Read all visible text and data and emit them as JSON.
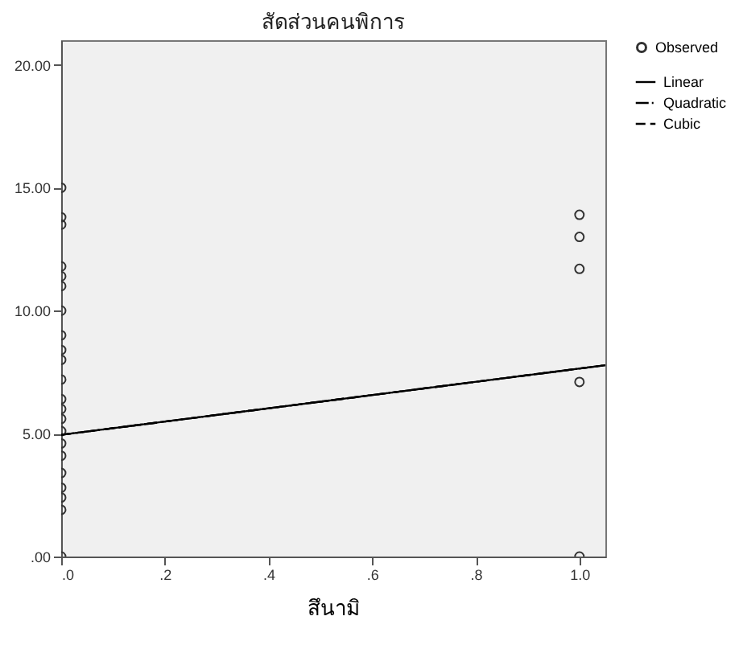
{
  "chart_data": {
    "type": "scatter",
    "title": "สัดส่วนคนพิการ",
    "xlabel": "สึนามิ",
    "xlim": [
      0,
      1.05
    ],
    "ylim": [
      0,
      21
    ],
    "xticks": [
      {
        "value": 0,
        "label": ".0"
      },
      {
        "value": 0.2,
        "label": ".2"
      },
      {
        "value": 0.4,
        "label": ".4"
      },
      {
        "value": 0.6,
        "label": ".6"
      },
      {
        "value": 0.8,
        "label": ".8"
      },
      {
        "value": 1,
        "label": "1.0"
      }
    ],
    "yticks": [
      {
        "value": 0,
        "label": ".00"
      },
      {
        "value": 5,
        "label": "5.00"
      },
      {
        "value": 10,
        "label": "10.00"
      },
      {
        "value": 15,
        "label": "15.00"
      },
      {
        "value": 20,
        "label": "20.00"
      }
    ],
    "grid": false,
    "legend": "top right",
    "series": [
      {
        "name": "Observed",
        "marker": "circle",
        "color": "#333333",
        "x": [
          0,
          0,
          0,
          0,
          0,
          0,
          0,
          0,
          0,
          0,
          0,
          0,
          0,
          0,
          0,
          0,
          0,
          0,
          0,
          0,
          0,
          0,
          1,
          1,
          1,
          1,
          1
        ],
        "values": [
          15.0,
          13.8,
          13.5,
          11.8,
          11.4,
          11.0,
          10.0,
          9.0,
          8.4,
          8.0,
          7.2,
          6.4,
          6.0,
          5.6,
          5.1,
          4.6,
          4.1,
          3.4,
          2.8,
          2.4,
          1.9,
          0,
          13.9,
          13.0,
          11.7,
          7.1,
          0
        ]
      },
      {
        "name": "Linear",
        "type": "line",
        "color": "#000000",
        "line_style": "solid",
        "x": [
          0,
          1.05
        ],
        "values": [
          4.95,
          7.78
        ]
      },
      {
        "name": "Quadratic",
        "type": "line",
        "color": "#000000",
        "line_style": "dotted",
        "x": [
          0,
          1.05
        ],
        "values": [
          4.95,
          7.78
        ]
      },
      {
        "name": "Cubic",
        "type": "line",
        "color": "#000000",
        "line_style": "dashed",
        "x": [
          0,
          1.05
        ],
        "values": [
          4.95,
          7.78
        ]
      }
    ]
  }
}
